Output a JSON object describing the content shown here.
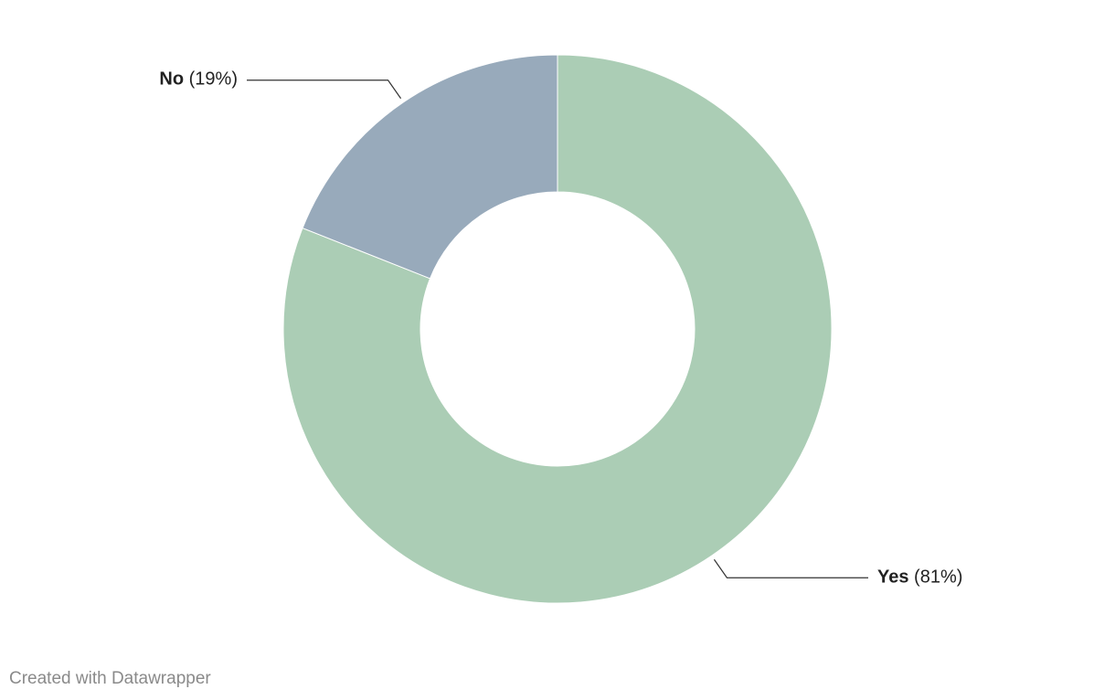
{
  "chart_data": {
    "type": "donut",
    "categories": [
      "Yes",
      "No"
    ],
    "values": [
      81,
      19
    ],
    "value_labels": [
      "(81%)",
      "(19%)"
    ],
    "colors": [
      "#abcdb5",
      "#98aabb"
    ]
  },
  "footer": "Created with Datawrapper"
}
